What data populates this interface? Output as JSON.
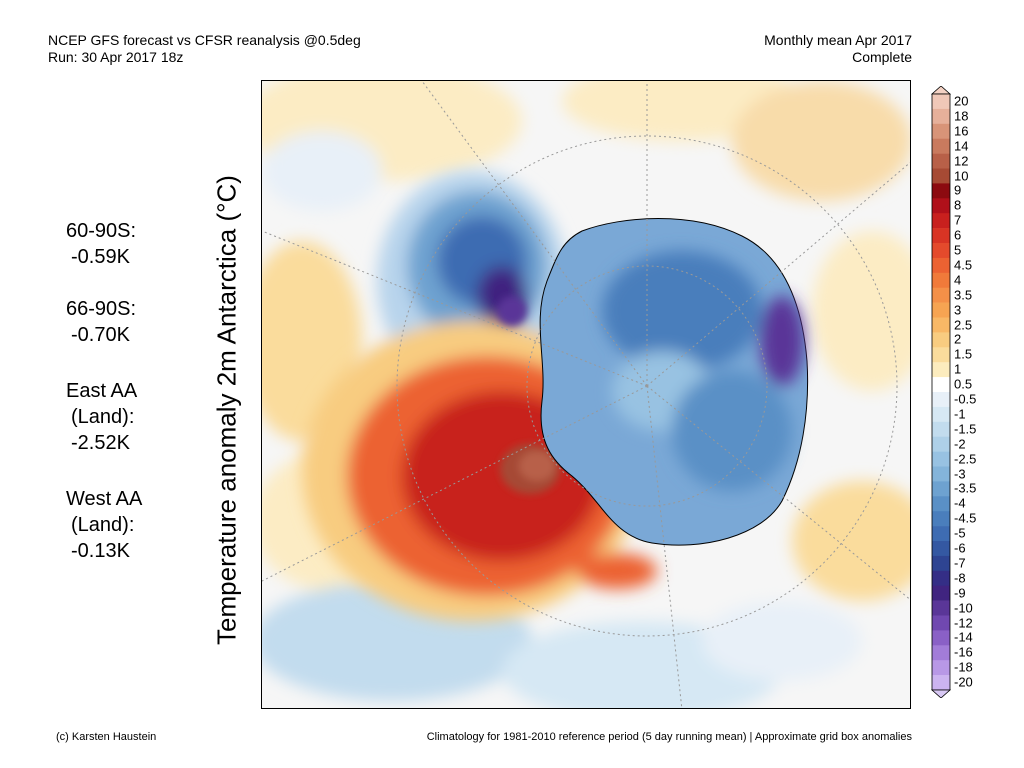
{
  "header": {
    "left_line1": "NCEP GFS forecast vs CFSR reanalysis @0.5deg",
    "left_line2": "Run: 30 Apr 2017 18z",
    "right_line1": "Monthly mean Apr 2017",
    "right_line2": "Complete"
  },
  "y_label": "Temperature anomaly 2m Antarctica (°C)",
  "stats": [
    {
      "line1": "60-90S:",
      "line2": "-0.59K",
      "line3": ""
    },
    {
      "line1": "66-90S:",
      "line2": "-0.70K",
      "line3": ""
    },
    {
      "line1": "East AA",
      "line2": "(Land):",
      "line3": "-2.52K"
    },
    {
      "line1": "West AA",
      "line2": "(Land):",
      "line3": "-0.13K"
    }
  ],
  "colorbar": {
    "labels": [
      "20",
      "18",
      "16",
      "14",
      "12",
      "10",
      "9",
      "8",
      "7",
      "6",
      "5",
      "4.5",
      "4",
      "3.5",
      "3",
      "2.5",
      "2",
      "1.5",
      "1",
      "0.5",
      "-0.5",
      "-1",
      "-1.5",
      "-2",
      "-2.5",
      "-3",
      "-3.5",
      "-4",
      "-4.5",
      "-5",
      "-6",
      "-7",
      "-8",
      "-9",
      "-10",
      "-12",
      "-14",
      "-16",
      "-18",
      "-20"
    ],
    "colors": [
      "#f0c8b8",
      "#e6b09a",
      "#d89478",
      "#c97a5e",
      "#b86048",
      "#a64a34",
      "#8c0a10",
      "#b0101a",
      "#c8201e",
      "#d83424",
      "#e44a2c",
      "#ec6232",
      "#f07a3a",
      "#f49048",
      "#f6a452",
      "#f8b866",
      "#f8cc80",
      "#fadc9c",
      "#fcecbe",
      "#ffffff",
      "#e8f0f8",
      "#d6e8f4",
      "#c2dcee",
      "#aed0e8",
      "#98c2e2",
      "#84b4da",
      "#6ea2d0",
      "#5a90c6",
      "#4a7ebc",
      "#3e6cb2",
      "#3458a2",
      "#2e4492",
      "#342e86",
      "#402480",
      "#5a3698",
      "#7048b0",
      "#8a60c6",
      "#a27cd8",
      "#b898e6",
      "#ccb4f0"
    ],
    "top_arrow_color": "#f4d2c4",
    "bottom_arrow_color": "#d8c8f4"
  },
  "footer": {
    "left": "(c) Karsten Haustein",
    "right": "Climatology for 1981-2010 reference period (5 day running mean) | Approximate grid box anomalies"
  }
}
